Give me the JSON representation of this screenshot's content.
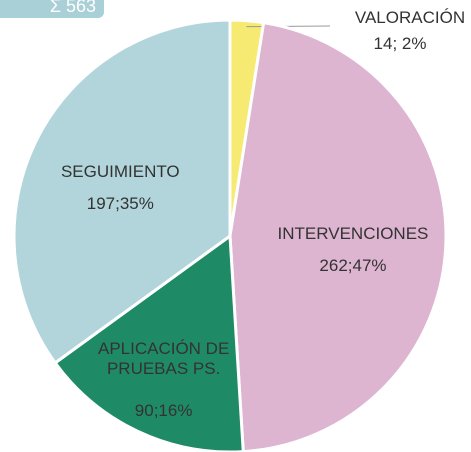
{
  "chart_data": {
    "type": "pie",
    "total_label": "Σ 563",
    "categories": [
      "VALORACIÓN",
      "INTERVENCIONES",
      "APLICACIÓN DE PRUEBAS PS.",
      "SEGUIMIENTO"
    ],
    "values": [
      14,
      262,
      90,
      197
    ],
    "value_labels": [
      "14; 2%",
      "262;47%",
      "90;16%",
      "197;35%"
    ],
    "colors": [
      "#f7ea72",
      "#ddb5d1",
      "#1f8b66",
      "#b1d5db"
    ]
  }
}
